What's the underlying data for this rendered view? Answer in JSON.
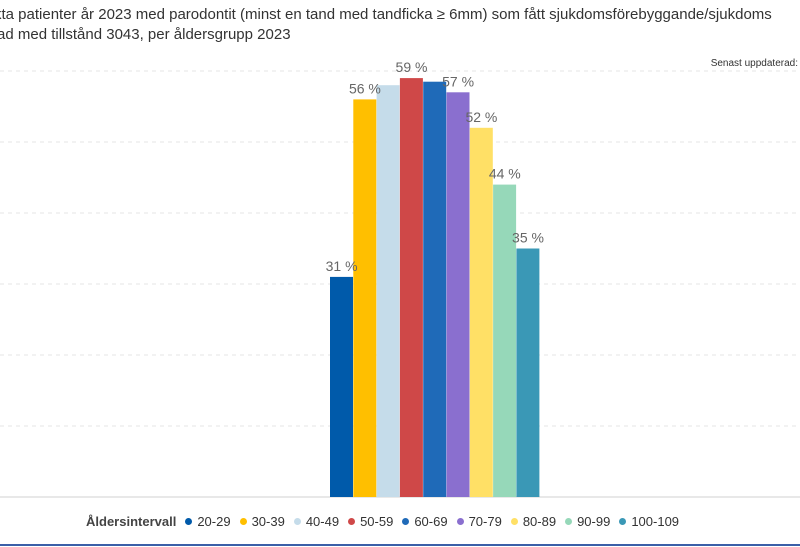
{
  "title": {
    "line1": "kta patienter år 2023 med parodontit (minst en tand med tandficka ≥ 6mm) som fått sjukdomsförebyggande/sjukdoms",
    "line2": "ad med tillstånd 3043, per åldersgrupp 2023"
  },
  "updated_label": "Senast uppdaterad:",
  "legend": {
    "title": "Åldersintervall"
  },
  "chart_data": {
    "type": "bar",
    "categories": [
      "20-29",
      "30-39",
      "40-49",
      "50-59",
      "60-69",
      "70-79",
      "80-89",
      "90-99",
      "100-109"
    ],
    "values": [
      31,
      56,
      58,
      59,
      58.5,
      57,
      52,
      44,
      35
    ],
    "data_labels": [
      "31 %",
      "56 %",
      "",
      "59 %",
      "",
      "57 %",
      "52 %",
      "44 %",
      "35 %"
    ],
    "colors": [
      "#005aaa",
      "#ffbf00",
      "#c5dcea",
      "#cf4848",
      "#1f6ab8",
      "#8a6fcf",
      "#ffe066",
      "#96d8b9",
      "#3a98b6"
    ],
    "ylim": [
      0,
      70
    ],
    "grid": true,
    "legend_position": "bottom"
  }
}
